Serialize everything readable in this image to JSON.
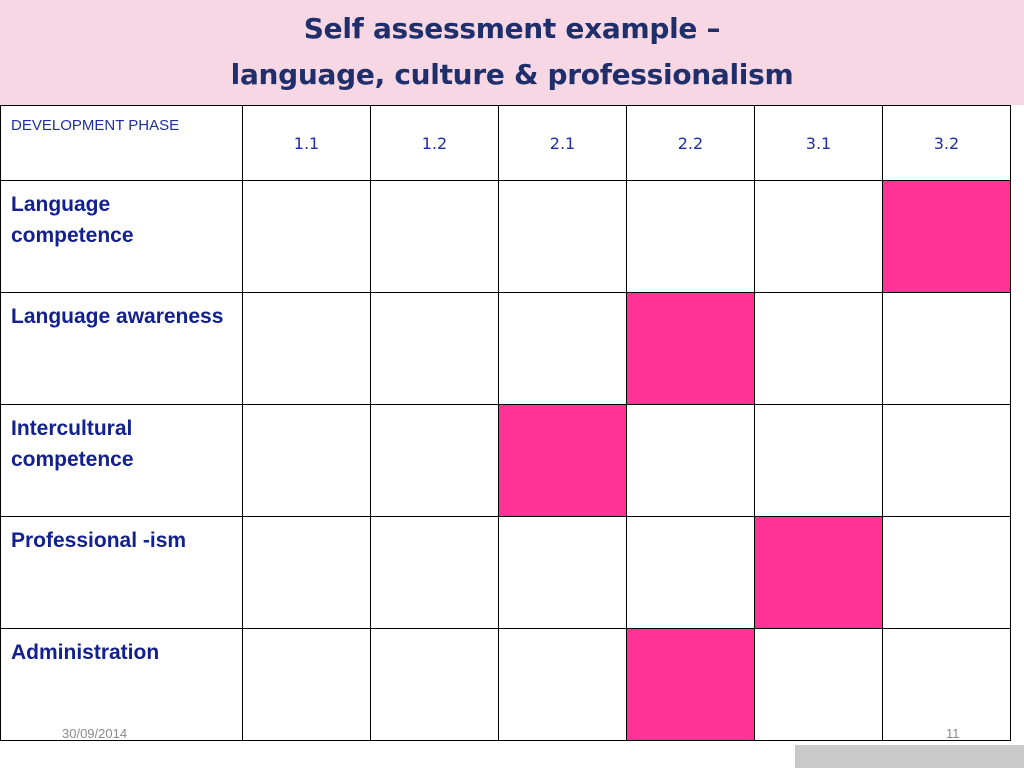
{
  "title": {
    "line1": "Self assessment example –",
    "line2": "language, culture & professionalism"
  },
  "table": {
    "header_label": "DEVELOPMENT PHASE",
    "phases": [
      "1.1",
      "1.2",
      "2.1",
      "2.2",
      "3.1",
      "3.2"
    ],
    "rows": [
      {
        "label": "Language competence",
        "selected_phase": "3.2"
      },
      {
        "label": "Language awareness",
        "selected_phase": "2.2"
      },
      {
        "label": "Intercultural competence",
        "selected_phase": "2.1"
      },
      {
        "label": "Professional -ism",
        "selected_phase": "3.1"
      },
      {
        "label": "Administration",
        "selected_phase": "2.2"
      }
    ],
    "highlight_color": "#ff3396"
  },
  "footer": {
    "date": "30/09/2014",
    "slide_number": "11"
  }
}
